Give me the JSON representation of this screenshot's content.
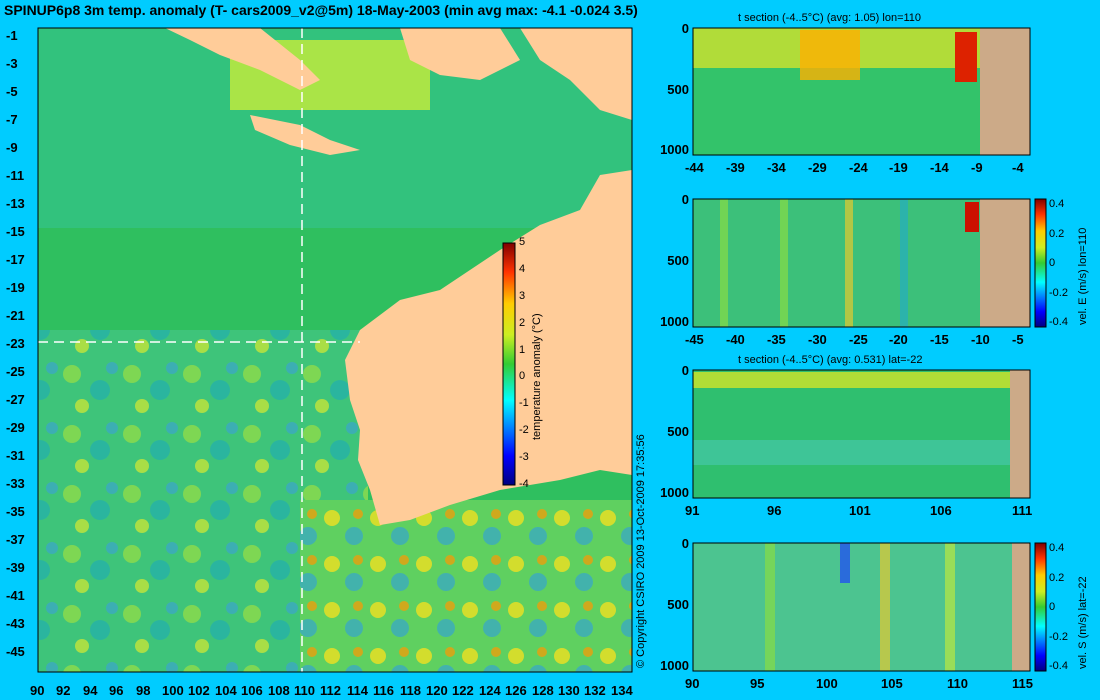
{
  "chart_data": {
    "main_map": {
      "type": "heatmap",
      "title": "SPINUP6p8 3m temp. anomaly (T- cars2009_v2@5m) 18-May-2003 (min avg max: -4.1 -0.024 3.5)",
      "xlim": [
        90,
        135
      ],
      "ylim": [
        -45,
        0
      ],
      "x_ticks": [
        "90",
        "92",
        "94",
        "96",
        "98",
        "100",
        "102",
        "104",
        "106",
        "108",
        "110",
        "112",
        "114",
        "116",
        "118",
        "120",
        "122",
        "124",
        "126",
        "128",
        "130",
        "132",
        "134"
      ],
      "y_ticks": [
        "-1",
        "-3",
        "-5",
        "-7",
        "-9",
        "-11",
        "-13",
        "-15",
        "-17",
        "-19",
        "-21",
        "-23",
        "-25",
        "-27",
        "-29",
        "-31",
        "-33",
        "-35",
        "-37",
        "-39",
        "-41",
        "-43",
        "-45"
      ],
      "section_lon": 110,
      "section_lat": -22,
      "colorbar": {
        "label": "temperature anomaly (°C)",
        "ticks": [
          "5",
          "4",
          "3",
          "2",
          "1",
          "0",
          "-1",
          "-2",
          "-3",
          "-4"
        ],
        "range": [
          -4,
          5
        ]
      },
      "copyright": "© Copyright CSIRO 2009   13-Oct-2009 17:35:56"
    },
    "panels": [
      {
        "type": "heatmap",
        "title": "t section (-4..5°C) (avg: 1.05) lon=110",
        "x_ticks": [
          "-44",
          "-39",
          "-34",
          "-29",
          "-24",
          "-19",
          "-14",
          "-9",
          "-4"
        ],
        "y_ticks": [
          "0",
          "500",
          "1000"
        ],
        "ylabel": "",
        "colorbar_ticks": []
      },
      {
        "type": "heatmap",
        "title": "",
        "x_ticks": [
          "-45",
          "-40",
          "-35",
          "-30",
          "-25",
          "-20",
          "-15",
          "-10",
          "-5"
        ],
        "y_ticks": [
          "0",
          "500",
          "1000"
        ],
        "ylabel": "vel. E (m/s) lon=110",
        "colorbar_ticks": [
          "0.4",
          "0.2",
          "0",
          "-0.2",
          "-0.4"
        ]
      },
      {
        "type": "heatmap",
        "title": "t section (-4..5°C) (avg: 0.531) lat=-22",
        "x_ticks": [
          "91",
          "96",
          "101",
          "106",
          "111"
        ],
        "y_ticks": [
          "0",
          "500",
          "1000"
        ],
        "ylabel": "",
        "colorbar_ticks": []
      },
      {
        "type": "heatmap",
        "title": "",
        "x_ticks": [
          "90",
          "95",
          "100",
          "105",
          "110",
          "115"
        ],
        "y_ticks": [
          "0",
          "500",
          "1000"
        ],
        "ylabel": "vel. S (m/s) lat=-22",
        "colorbar_ticks": [
          "0.4",
          "0.2",
          "0",
          "-0.2",
          "-0.4"
        ]
      }
    ]
  }
}
